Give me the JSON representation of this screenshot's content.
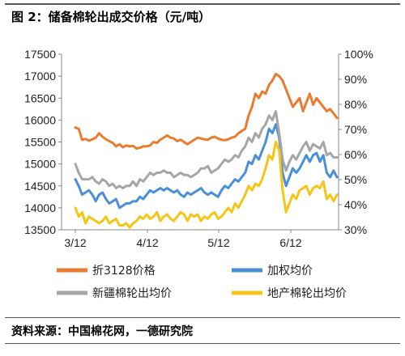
{
  "figure": {
    "title": "图 2：储备棉轮出成交价格（元/吨）",
    "source": "资料来源：中国棉花网，一德研究院"
  },
  "chart_data": {
    "type": "line",
    "title": "图 2：储备棉轮出成交价格（元/吨）",
    "x_ticks": [
      "3/12",
      "4/12",
      "5/12",
      "6/12"
    ],
    "y_left": {
      "min": 13500,
      "max": 17500,
      "ticks": [
        "17500",
        "17000",
        "16500",
        "16000",
        "15500",
        "15000",
        "14500",
        "14000",
        "13500"
      ]
    },
    "y_right": {
      "min": 0.3,
      "max": 1.0,
      "ticks": [
        "100%",
        "90%",
        "80%",
        "70%",
        "60%",
        "50%",
        "40%",
        "30%"
      ]
    },
    "grid": false,
    "legend_position": "bottom",
    "colors": {
      "折3128价格": "#E97C30",
      "加权均价": "#4A90D9",
      "新疆棉轮出均价": "#A6A6A6",
      "地产棉轮出均价": "#F5C518"
    },
    "series": [
      {
        "name": "折3128价格",
        "axis": "left",
        "values": [
          15830,
          15800,
          15550,
          15570,
          15530,
          15560,
          15600,
          15700,
          15620,
          15560,
          15520,
          15480,
          15400,
          15450,
          15380,
          15420,
          15400,
          15410,
          15350,
          15370,
          15400,
          15400,
          15420,
          15500,
          15480,
          15550,
          15600,
          15650,
          15600,
          15580,
          15520,
          15550,
          15500,
          15450,
          15500,
          15550,
          15600,
          15580,
          15560,
          15550,
          15600,
          15620,
          15580,
          15550,
          15540,
          15560,
          15600,
          15620,
          15700,
          15750,
          15800,
          16100,
          16300,
          16600,
          16500,
          16650,
          16600,
          16800,
          16900,
          17050,
          17000,
          16900,
          16700,
          16500,
          16300,
          16400,
          16500,
          16200,
          16400,
          16600,
          16350,
          16500,
          16400,
          16300,
          16200,
          16250,
          16150,
          16050
        ]
      },
      {
        "name": "加权均价",
        "axis": "left",
        "values": [
          14650,
          14500,
          14300,
          14350,
          14400,
          14300,
          14150,
          14300,
          14350,
          14200,
          14100,
          14150,
          14200,
          14000,
          14050,
          14100,
          14100,
          14150,
          14150,
          14250,
          14200,
          14300,
          14400,
          14350,
          14400,
          14450,
          14400,
          14450,
          14400,
          14350,
          14400,
          14300,
          14250,
          14350,
          14300,
          14350,
          14400,
          14450,
          14350,
          14300,
          14350,
          14300,
          14250,
          14400,
          14500,
          14450,
          14550,
          14650,
          14600,
          14700,
          14800,
          15050,
          15000,
          15200,
          15100,
          15300,
          15500,
          15800,
          15700,
          15900,
          15600,
          14800,
          14500,
          14700,
          14900,
          14800,
          14900,
          15050,
          15200,
          15050,
          15200,
          15250,
          15050,
          15200,
          14800,
          14700,
          14850,
          14700
        ]
      },
      {
        "name": "新疆棉轮出均价",
        "axis": "left",
        "values": [
          15000,
          14800,
          14650,
          14650,
          14650,
          14700,
          14600,
          14550,
          14650,
          14600,
          14500,
          14550,
          14450,
          14500,
          14450,
          14500,
          14500,
          14600,
          14500,
          14650,
          14600,
          14700,
          14800,
          14750,
          14800,
          14800,
          14850,
          14800,
          14800,
          14700,
          14750,
          14800,
          14750,
          14750,
          14700,
          14750,
          14800,
          14900,
          14900,
          14950,
          14800,
          14850,
          14900,
          15000,
          15100,
          15050,
          15100,
          15200,
          15150,
          15300,
          15400,
          15600,
          15500,
          15700,
          15600,
          15800,
          15900,
          16100,
          16000,
          16200,
          15700,
          15100,
          14850,
          15050,
          15200,
          15100,
          15250,
          15400,
          15500,
          15300,
          15450,
          15400,
          15350,
          15500,
          15200,
          15250,
          15150,
          15150
        ]
      },
      {
        "name": "地产棉轮出均价",
        "axis": "left",
        "values": [
          14000,
          13800,
          13900,
          13650,
          13800,
          13750,
          13700,
          13650,
          13700,
          13800,
          13650,
          13700,
          13750,
          13600,
          13600,
          13650,
          13550,
          13650,
          13700,
          13800,
          13750,
          13850,
          13750,
          13800,
          13900,
          13700,
          13800,
          13850,
          13750,
          13700,
          13800,
          13900,
          13850,
          13700,
          13850,
          13800,
          13850,
          13700,
          13800,
          13750,
          13850,
          13900,
          13750,
          13800,
          13900,
          14000,
          13900,
          14100,
          14000,
          14150,
          14300,
          14500,
          14400,
          14550,
          14500,
          14650,
          14900,
          15200,
          15100,
          15500,
          15300,
          14400,
          13900,
          14100,
          14300,
          14200,
          14400,
          14450,
          14500,
          14300,
          14450,
          14500,
          14450,
          14600,
          14200,
          14300,
          14150,
          14300
        ]
      }
    ]
  }
}
